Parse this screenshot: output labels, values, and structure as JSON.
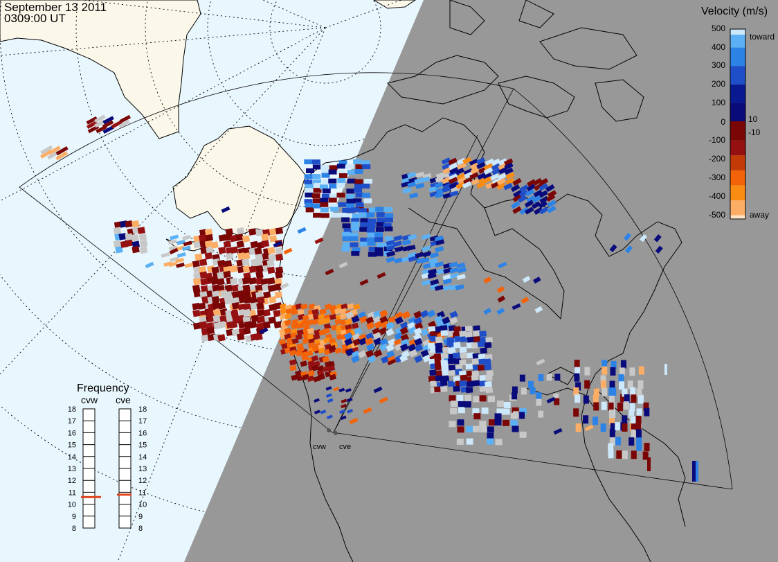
{
  "header": {
    "date": "September 13 2011",
    "time": "0309:00 UT"
  },
  "colorbar": {
    "title": "Velocity (m/s)",
    "tick_labels": [
      "500",
      "400",
      "300",
      "200",
      "100",
      "10",
      "0",
      "-10",
      "-100",
      "-200",
      "-300",
      "-400",
      "-500"
    ],
    "toward_label": "toward",
    "away_label": "away",
    "colors": [
      "#fde3c6",
      "#fdae66",
      "#fb8c13",
      "#f2630a",
      "#c23b07",
      "#951111",
      "#7a0606",
      "#0a0b7a",
      "#09198f",
      "#1f4ec9",
      "#2d82e6",
      "#5cb1f5",
      "#cde8fb"
    ]
  },
  "radars": [
    {
      "name": "cvw",
      "frequency_mhz": 10.6
    },
    {
      "name": "cve",
      "frequency_mhz": 10.8
    }
  ],
  "frequency_panel": {
    "title": "Frequency",
    "ticks": [
      "8",
      "9",
      "10",
      "11",
      "12",
      "13",
      "14",
      "15",
      "16",
      "17",
      "18"
    ]
  },
  "map": {
    "ocean_color": "#e8f6fd",
    "land_color": "#fbf8ea",
    "night_color": "#989898",
    "no_velocity_color": "#c8c8c8"
  }
}
